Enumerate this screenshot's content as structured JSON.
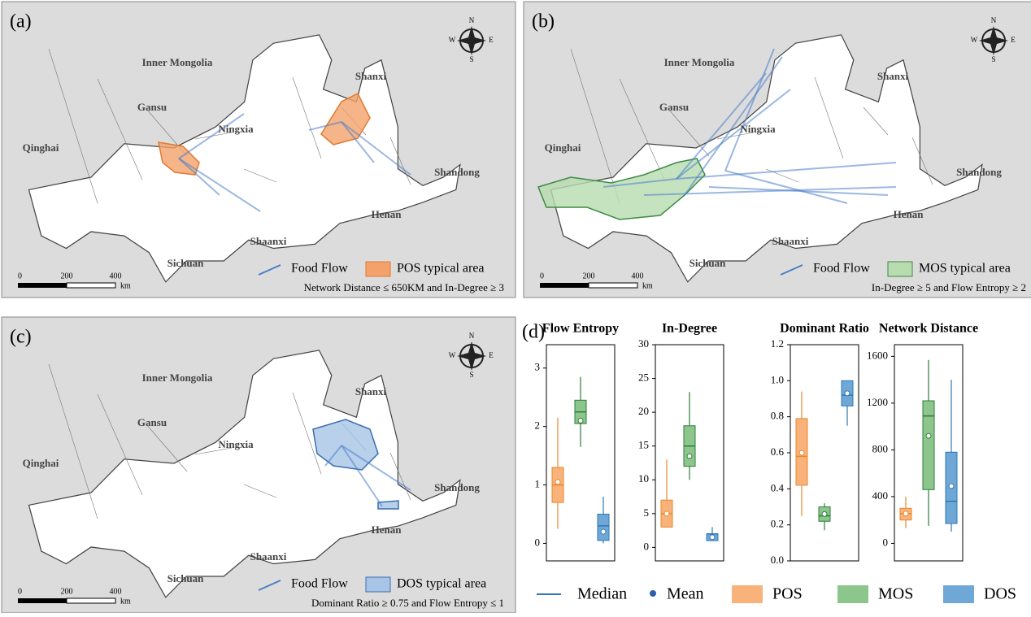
{
  "maps": [
    {
      "label": "(a)",
      "provinces": [
        "Inner Mongolia",
        "Shanxi",
        "Gansu",
        "Ningxia",
        "Qinghai",
        "Shandong",
        "Henan",
        "Shaanxi",
        "Sichuan"
      ],
      "legend_flow": "Food Flow",
      "legend_area": "POS typical area",
      "area_color": "#f4a26b",
      "area_stroke": "#e07a30",
      "condition": "Network Distance ≤ 650KM and In-Degree ≥ 3",
      "scale": [
        "0",
        "200",
        "400",
        "km"
      ],
      "compass": [
        "N",
        "E",
        "S",
        "W"
      ]
    },
    {
      "label": "(b)",
      "provinces": [
        "Inner Mongolia",
        "Shanxi",
        "Gansu",
        "Ningxia",
        "Qinghai",
        "Shandong",
        "Henan",
        "Shaanxi",
        "Sichuan"
      ],
      "legend_flow": "Food Flow",
      "legend_area": "MOS typical area",
      "area_color": "#b8dcb0",
      "area_stroke": "#3d8a45",
      "condition": "In-Degree ≥ 5 and Flow Entropy ≥ 2",
      "scale": [
        "0",
        "200",
        "400",
        "km"
      ],
      "compass": [
        "N",
        "E",
        "S",
        "W"
      ]
    },
    {
      "label": "(c)",
      "provinces": [
        "Inner Mongolia",
        "Shanxi",
        "Gansu",
        "Ningxia",
        "Qinghai",
        "Shandong",
        "Henan",
        "Shaanxi",
        "Sichuan"
      ],
      "legend_flow": "Food Flow",
      "legend_area": "DOS typical area",
      "area_color": "#a8c4e6",
      "area_stroke": "#3a6eb0",
      "condition": "Dominant Ratio ≥ 0.75 and Flow Entropy ≤ 1",
      "scale": [
        "0",
        "200",
        "400",
        "km"
      ],
      "compass": [
        "N",
        "E",
        "S",
        "W"
      ]
    }
  ],
  "panel_d": "(d)",
  "box_legend": [
    "Median",
    "Mean"
  ],
  "chart_data": [
    {
      "type": "box",
      "title": "Flow Entropy",
      "ylim": [
        -0.3,
        3.4
      ],
      "yticks": [
        0,
        1,
        2,
        3
      ],
      "series": [
        {
          "name": "POS",
          "color": "#f8b27a",
          "stroke": "#e8892e",
          "whisker_low": 0.25,
          "q1": 0.7,
          "median": 1.0,
          "q3": 1.3,
          "whisker_high": 2.15,
          "mean": 1.05
        },
        {
          "name": "MOS",
          "color": "#8cc68c",
          "stroke": "#2e7d3a",
          "whisker_low": 1.65,
          "q1": 2.05,
          "median": 2.25,
          "q3": 2.45,
          "whisker_high": 2.85,
          "mean": 2.1
        },
        {
          "name": "DOS",
          "color": "#6fa8d6",
          "stroke": "#2f78b4",
          "whisker_low": 0.0,
          "q1": 0.05,
          "median": 0.3,
          "q3": 0.5,
          "whisker_high": 0.8,
          "mean": 0.2
        }
      ]
    },
    {
      "type": "box",
      "title": "In-Degree",
      "ylim": [
        -2,
        30
      ],
      "yticks": [
        0,
        5,
        10,
        15,
        20,
        25,
        30
      ],
      "series": [
        {
          "name": "POS",
          "color": "#f8b27a",
          "stroke": "#e8892e",
          "whisker_low": 3,
          "q1": 3,
          "median": 5,
          "q3": 7,
          "whisker_high": 13,
          "mean": 5
        },
        {
          "name": "MOS",
          "color": "#8cc68c",
          "stroke": "#2e7d3a",
          "whisker_low": 10,
          "q1": 12,
          "median": 15,
          "q3": 18,
          "whisker_high": 23,
          "mean": 13.5
        },
        {
          "name": "DOS",
          "color": "#6fa8d6",
          "stroke": "#2f78b4",
          "whisker_low": 1,
          "q1": 1,
          "median": 2,
          "q3": 2,
          "whisker_high": 3,
          "mean": 1.5
        }
      ]
    },
    {
      "type": "box",
      "title": "Dominant Ratio",
      "ylim": [
        0,
        1.2
      ],
      "yticks": [
        {
          "value": 0,
          "label": "0.0"
        },
        0.2,
        0.4,
        0.6,
        0.8,
        {
          "value": 1,
          "label": "1.0"
        },
        1.2
      ],
      "series": [
        {
          "name": "POS",
          "color": "#f8b27a",
          "stroke": "#e8892e",
          "whisker_low": 0.25,
          "q1": 0.42,
          "median": 0.58,
          "q3": 0.79,
          "whisker_high": 0.94,
          "mean": 0.6
        },
        {
          "name": "MOS",
          "color": "#8cc68c",
          "stroke": "#2e7d3a",
          "whisker_low": 0.17,
          "q1": 0.22,
          "median": 0.25,
          "q3": 0.3,
          "whisker_high": 0.32,
          "mean": 0.26
        },
        {
          "name": "DOS",
          "color": "#6fa8d6",
          "stroke": "#2f78b4",
          "whisker_low": 0.75,
          "q1": 0.86,
          "median": 0.92,
          "q3": 1.0,
          "whisker_high": 1.0,
          "mean": 0.93
        }
      ]
    },
    {
      "type": "box",
      "title": "Network Distance",
      "ylim": [
        -150,
        1700
      ],
      "yticks": [
        0,
        400,
        800,
        1200,
        1600
      ],
      "series": [
        {
          "name": "POS",
          "color": "#f8b27a",
          "stroke": "#e8892e",
          "whisker_low": 130,
          "q1": 200,
          "median": 255,
          "q3": 300,
          "whisker_high": 400,
          "mean": 255
        },
        {
          "name": "MOS",
          "color": "#8cc68c",
          "stroke": "#2e7d3a",
          "whisker_low": 150,
          "q1": 460,
          "median": 1090,
          "q3": 1220,
          "whisker_high": 1570,
          "mean": 920
        },
        {
          "name": "DOS",
          "color": "#6fa8d6",
          "stroke": "#2f78b4",
          "whisker_low": 100,
          "q1": 170,
          "median": 360,
          "q3": 780,
          "whisker_high": 1400,
          "mean": 490
        }
      ]
    }
  ]
}
